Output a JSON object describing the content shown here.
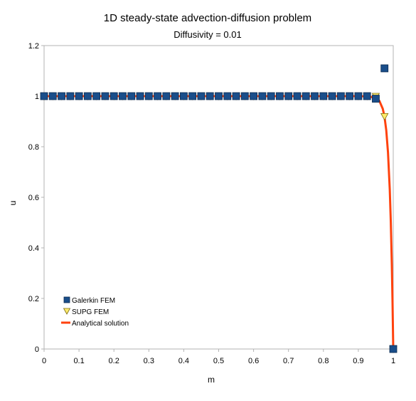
{
  "chart_data": {
    "type": "scatter",
    "title": "1D steady-state advection-diffusion problem",
    "subtitle": "Diffusivity = 0.01",
    "xlabel": "m",
    "ylabel": "u",
    "xlim": [
      0,
      1
    ],
    "ylim": [
      0,
      1.2
    ],
    "xticks": [
      "0",
      "0.1",
      "0.2",
      "0.3",
      "0.4",
      "0.5",
      "0.6",
      "0.7",
      "0.8",
      "0.9",
      "1"
    ],
    "yticks": [
      "0",
      "0.2",
      "0.4",
      "0.6",
      "0.8",
      "1",
      "1.2"
    ],
    "grid": false,
    "legend_position": "bottom-left",
    "series": [
      {
        "name": "Galerkin FEM",
        "marker": "square",
        "color": "#1a4e8a",
        "x": [
          0,
          0.025,
          0.05,
          0.075,
          0.1,
          0.125,
          0.15,
          0.175,
          0.2,
          0.225,
          0.25,
          0.275,
          0.3,
          0.325,
          0.35,
          0.375,
          0.4,
          0.425,
          0.45,
          0.475,
          0.5,
          0.525,
          0.55,
          0.575,
          0.6,
          0.625,
          0.65,
          0.675,
          0.7,
          0.725,
          0.75,
          0.775,
          0.8,
          0.825,
          0.85,
          0.875,
          0.9,
          0.925,
          0.95,
          0.975,
          1.0
        ],
        "y": [
          1,
          1,
          1,
          1,
          1,
          1,
          1,
          1,
          1,
          1,
          1,
          1,
          1,
          1,
          1,
          1,
          1,
          1,
          1,
          1,
          1,
          1,
          1,
          1,
          1,
          1,
          1,
          1,
          1,
          1,
          1,
          1,
          1,
          1,
          1,
          1,
          1,
          1,
          0.99,
          1.11,
          0
        ]
      },
      {
        "name": "SUPG FEM",
        "marker": "triangle-down",
        "color": "#ffeb6b",
        "x": [
          0,
          0.025,
          0.05,
          0.075,
          0.1,
          0.125,
          0.15,
          0.175,
          0.2,
          0.225,
          0.25,
          0.275,
          0.3,
          0.325,
          0.35,
          0.375,
          0.4,
          0.425,
          0.45,
          0.475,
          0.5,
          0.525,
          0.55,
          0.575,
          0.6,
          0.625,
          0.65,
          0.675,
          0.7,
          0.725,
          0.75,
          0.775,
          0.8,
          0.825,
          0.85,
          0.875,
          0.9,
          0.925,
          0.95,
          0.975,
          1.0
        ],
        "y": [
          1,
          1,
          1,
          1,
          1,
          1,
          1,
          1,
          1,
          1,
          1,
          1,
          1,
          1,
          1,
          1,
          1,
          1,
          1,
          1,
          1,
          1,
          1,
          1,
          1,
          1,
          1,
          1,
          1,
          1,
          1,
          1,
          1,
          1,
          1,
          1,
          1,
          1,
          1,
          0.92,
          0
        ]
      },
      {
        "name": "Analytical solution",
        "marker": "line",
        "color": "#ff420e",
        "x": [
          0,
          0.9,
          0.93,
          0.95,
          0.96,
          0.97,
          0.975,
          0.98,
          0.985,
          0.99,
          0.993,
          0.996,
          0.998,
          1.0
        ],
        "y": [
          1,
          1,
          0.999,
          0.993,
          0.982,
          0.95,
          0.918,
          0.865,
          0.777,
          0.632,
          0.503,
          0.33,
          0.181,
          0
        ]
      }
    ]
  }
}
